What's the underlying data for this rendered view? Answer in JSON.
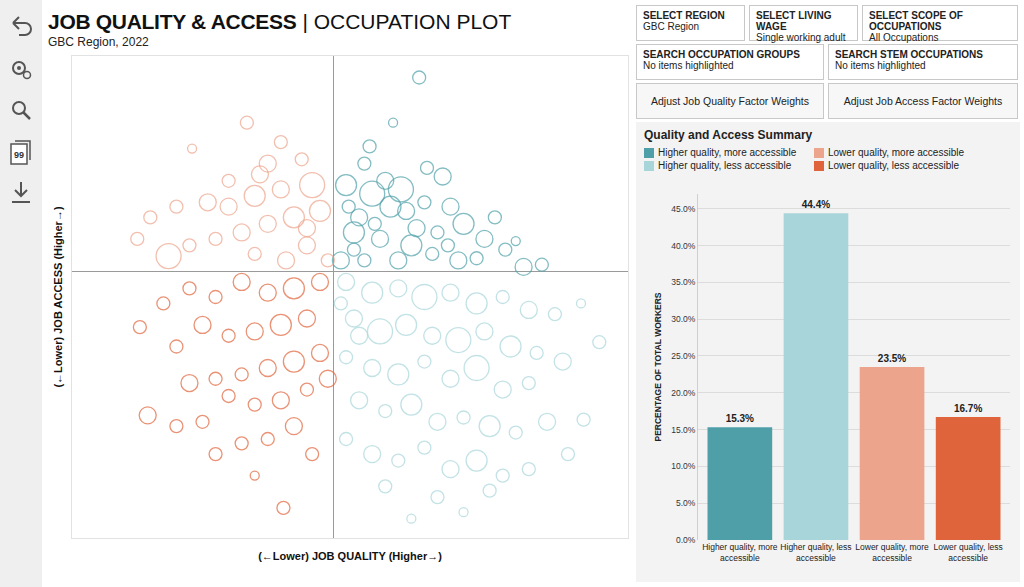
{
  "header": {
    "title": "JOB QUALITY & ACCESS",
    "title_suffix": "| OCCUPATION PLOT",
    "subtitle": "GBC Region, 2022"
  },
  "sidebar": {
    "quote_icon_text": "99"
  },
  "controls": [
    {
      "label": "SELECT REGION",
      "value": "GBC Region"
    },
    {
      "label": "SELECT LIVING WAGE",
      "value": "Single working adult"
    },
    {
      "label": "SELECT SCOPE OF OCCUPATIONS",
      "value": "All Occupations"
    },
    {
      "label": "SEARCH OCCUPATION GROUPS",
      "value": "No items highlighted"
    },
    {
      "label": "SEARCH STEM OCCUPATIONS",
      "value": "No items highlighted"
    }
  ],
  "buttons": [
    "Adjust Job Quality Factor Weights",
    "Adjust Job Access Factor Weights"
  ],
  "summary": {
    "title": "Quality and Access Summary"
  },
  "chart_data": [
    {
      "type": "scatter",
      "marker": "circle-open",
      "x_label": "(←Lower) JOB QUALITY (Higher→)",
      "y_label": "(←Lower) JOB ACCESS (Higher→)",
      "xlim": [
        -1.0,
        1.13
      ],
      "ylim": [
        -1.24,
        1.0
      ],
      "xticks": [
        0
      ],
      "yticks": [
        0
      ],
      "grid": true,
      "tick_labels": false,
      "series": [
        {
          "name": "Higher quality, more accessible",
          "color": "#4f9fa8",
          "x": [
            0.33,
            0.23,
            0.42,
            0.12,
            0.05,
            0.15,
            0.22,
            0.1,
            0.28,
            0.35,
            0.45,
            0.5,
            0.62,
            0.58,
            0.4,
            0.3,
            0.18,
            0.08,
            0.03,
            0.12,
            0.25,
            0.38,
            0.48,
            0.55,
            0.73,
            0.8,
            0.66,
            0.2,
            0.08,
            0.16,
            0.32,
            0.26,
            0.06,
            0.44,
            0.7,
            0.14,
            0.36
          ],
          "y": [
            0.9,
            0.69,
            0.44,
            0.5,
            0.4,
            0.36,
            0.3,
            0.25,
            0.28,
            0.32,
            0.3,
            0.22,
            0.25,
            0.15,
            0.18,
            0.12,
            0.15,
            0.1,
            0.05,
            0.05,
            0.05,
            0.08,
            0.05,
            0.06,
            0.02,
            0.03,
            0.1,
            0.42,
            0.18,
            0.22,
            0.2,
            0.38,
            0.3,
            0.12,
            0.14,
            0.58,
            0.48
          ],
          "sizes": [
            2,
            1,
            3,
            2,
            4,
            5,
            4,
            3,
            3,
            2,
            3,
            4,
            2,
            3,
            2,
            4,
            3,
            2,
            3,
            2,
            3,
            2,
            3,
            2,
            3,
            2,
            2,
            3,
            4,
            2,
            3,
            5,
            2,
            2,
            1,
            2,
            2
          ]
        },
        {
          "name": "Higher quality, less accessible",
          "color": "#a8d5da",
          "x": [
            0.05,
            0.15,
            0.25,
            0.35,
            0.45,
            0.55,
            0.65,
            0.75,
            0.85,
            0.95,
            1.02,
            0.08,
            0.18,
            0.28,
            0.38,
            0.48,
            0.58,
            0.68,
            0.78,
            0.88,
            0.05,
            0.15,
            0.25,
            0.35,
            0.45,
            0.55,
            0.65,
            0.75,
            0.96,
            0.1,
            0.2,
            0.3,
            0.4,
            0.5,
            0.6,
            0.7,
            0.82,
            0.05,
            0.15,
            0.25,
            0.35,
            0.45,
            0.55,
            0.65,
            0.75,
            0.9,
            0.2,
            0.4,
            0.6,
            0.5,
            0.3,
            0.1,
            0.03
          ],
          "y": [
            -0.05,
            -0.1,
            -0.08,
            -0.12,
            -0.1,
            -0.15,
            -0.12,
            -0.18,
            -0.2,
            -0.15,
            -0.33,
            -0.22,
            -0.28,
            -0.25,
            -0.3,
            -0.32,
            -0.28,
            -0.35,
            -0.38,
            -0.42,
            -0.4,
            -0.45,
            -0.48,
            -0.42,
            -0.5,
            -0.45,
            -0.55,
            -0.52,
            -0.69,
            -0.6,
            -0.65,
            -0.62,
            -0.7,
            -0.68,
            -0.72,
            -0.75,
            -0.7,
            -0.78,
            -0.85,
            -0.88,
            -0.82,
            -0.92,
            -0.88,
            -0.95,
            -0.92,
            -0.85,
            -1.0,
            -1.05,
            -1.02,
            -1.12,
            -1.15,
            -0.3,
            -0.15
          ],
          "sizes": [
            3,
            4,
            3,
            5,
            3,
            4,
            2,
            3,
            2,
            1,
            2,
            3,
            5,
            4,
            3,
            5,
            3,
            4,
            2,
            3,
            2,
            3,
            4,
            2,
            3,
            5,
            3,
            2,
            2,
            3,
            2,
            4,
            3,
            2,
            4,
            2,
            3,
            2,
            3,
            2,
            2,
            3,
            4,
            2,
            2,
            2,
            2,
            2,
            2,
            1,
            1,
            3,
            2
          ]
        },
        {
          "name": "Lower quality, more accessible",
          "color": "#eca48c",
          "x": [
            -0.33,
            -0.54,
            -0.25,
            -0.12,
            -0.08,
            -0.2,
            -0.3,
            -0.4,
            -0.48,
            -0.6,
            -0.7,
            -0.15,
            -0.25,
            -0.35,
            -0.45,
            -0.63,
            -0.55,
            -0.1,
            -0.05,
            -0.02,
            -0.18,
            -0.3,
            -0.4,
            -0.75,
            -0.2,
            -0.1,
            -0.28
          ],
          "y": [
            0.69,
            0.57,
            0.5,
            0.52,
            0.4,
            0.38,
            0.35,
            0.42,
            0.32,
            0.3,
            0.25,
            0.25,
            0.22,
            0.18,
            0.15,
            0.07,
            0.12,
            0.12,
            0.28,
            0.05,
            0.05,
            0.08,
            0.3,
            0.15,
            0.6,
            0.2,
            0.45
          ],
          "sizes": [
            2,
            1,
            3,
            2,
            5,
            3,
            4,
            2,
            3,
            2,
            2,
            4,
            3,
            3,
            2,
            5,
            2,
            3,
            4,
            2,
            3,
            2,
            3,
            2,
            2,
            3,
            3
          ]
        },
        {
          "name": "Lower quality, less accessible",
          "color": "#e0643b",
          "x": [
            -0.05,
            -0.15,
            -0.25,
            -0.35,
            -0.45,
            -0.55,
            -0.65,
            -0.74,
            -0.1,
            -0.2,
            -0.3,
            -0.4,
            -0.5,
            -0.6,
            -0.05,
            -0.15,
            -0.25,
            -0.35,
            -0.45,
            -0.55,
            -0.1,
            -0.2,
            -0.3,
            -0.4,
            -0.71,
            -0.5,
            -0.15,
            -0.25,
            -0.35,
            -0.45,
            -0.6,
            -0.08,
            -0.19,
            -0.02,
            -0.3
          ],
          "y": [
            -0.05,
            -0.08,
            -0.1,
            -0.05,
            -0.12,
            -0.08,
            -0.15,
            -0.26,
            -0.22,
            -0.25,
            -0.28,
            -0.3,
            -0.25,
            -0.35,
            -0.38,
            -0.42,
            -0.45,
            -0.48,
            -0.5,
            -0.52,
            -0.55,
            -0.6,
            -0.62,
            -0.58,
            -0.67,
            -0.7,
            -0.72,
            -0.78,
            -0.8,
            -0.85,
            -0.72,
            -0.85,
            -1.1,
            -0.5,
            -0.95
          ],
          "sizes": [
            3,
            4,
            3,
            3,
            2,
            2,
            2,
            2,
            3,
            4,
            3,
            2,
            3,
            2,
            3,
            4,
            3,
            2,
            2,
            3,
            2,
            3,
            2,
            2,
            3,
            2,
            3,
            2,
            2,
            2,
            2,
            2,
            2,
            3,
            1
          ]
        }
      ]
    },
    {
      "type": "bar",
      "y_label": "PERCENTAGE OF TOTAL WORKERS",
      "categories": [
        "Higher quality, more accessible",
        "Higher quality, less accessible",
        "Lower quality, more accessible",
        "Lower quality, less accessible"
      ],
      "values": [
        15.3,
        44.4,
        23.5,
        16.7
      ],
      "value_labels": [
        "15.3%",
        "44.4%",
        "23.5%",
        "16.7%"
      ],
      "colors": [
        "#4f9fa8",
        "#a8d5da",
        "#eca48c",
        "#e0643b"
      ],
      "data_labels": true,
      "grid": true,
      "ylim": [
        0,
        47
      ],
      "yticks": [
        {
          "value": 0,
          "label": "0.0%"
        },
        {
          "value": 5,
          "label": "5.0%"
        },
        {
          "value": 10,
          "label": "10.0%"
        },
        {
          "value": 15,
          "label": "15.0%"
        },
        {
          "value": 20,
          "label": "20.0%"
        },
        {
          "value": 25,
          "label": "25.0%"
        },
        {
          "value": 30,
          "label": "30.0%"
        },
        {
          "value": 35,
          "label": "35.0%"
        },
        {
          "value": 40,
          "label": "40.0%"
        },
        {
          "value": 45,
          "label": "45.0%"
        }
      ]
    }
  ]
}
